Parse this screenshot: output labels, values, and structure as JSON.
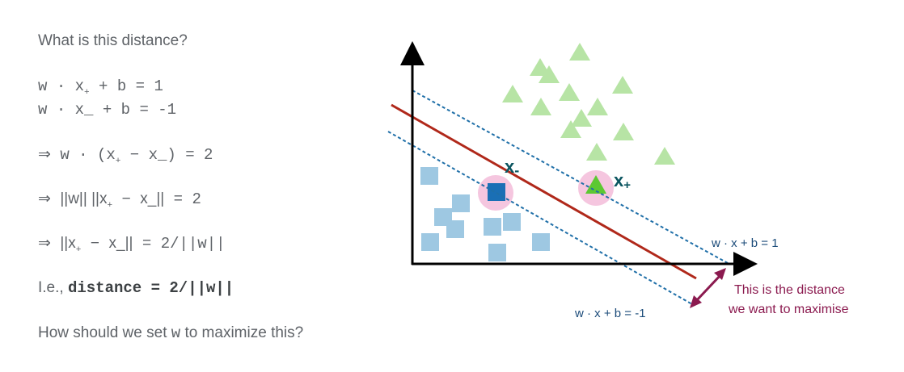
{
  "text": {
    "question": "What is this distance?",
    "eq1": {
      "w": "w",
      "dot": "·",
      "x": "x",
      "sub": "+",
      "rest": "+ b = 1"
    },
    "eq2": {
      "w": "w",
      "dot": "·",
      "x": "x",
      "sub": "_",
      "rest": "+ b = -1"
    },
    "step1": {
      "arrow": "⇒",
      "w": "w",
      "dot": "·",
      "open": "(x",
      "sub1": "+",
      "minus": "−",
      "x2": "x_)",
      "rest": "= 2"
    },
    "step2": {
      "arrow": "⇒",
      "norm": "||w|| ||x",
      "sub1": "+",
      "minus": "−",
      "x2": "x_||",
      "rest": "= 2"
    },
    "step3": {
      "arrow": "⇒",
      "norm": "||x",
      "sub1": "+",
      "minus": "−",
      "x2": "x_||",
      "rest": "= 2/||w||"
    },
    "ie_prefix": "I.e.,",
    "ie_formula": "distance = 2/||w||",
    "closing_pre": "How should we set",
    "closing_w": "w",
    "closing_post": "to maximize this?"
  },
  "diagram": {
    "label_x_minus": "x",
    "label_x_minus_sub": "-",
    "label_x_plus": "x",
    "label_x_plus_sub": "+",
    "margin_upper_label": "w · x + b = 1",
    "margin_lower_label": "w · x + b = -1",
    "annotation_line1": "This is the distance",
    "annotation_line2": "we want to maximise",
    "colors": {
      "axis": "#000000",
      "boundary": "#b0281a",
      "margin": "#1f6fa8",
      "triangle": "#b7e4a5",
      "square": "#9ec8e2",
      "support_square": "#1a6fb5",
      "support_triangle": "#5cc832",
      "highlight": "#f5c6df",
      "annotation": "#8b1a4f",
      "label": "#0b5560"
    }
  }
}
